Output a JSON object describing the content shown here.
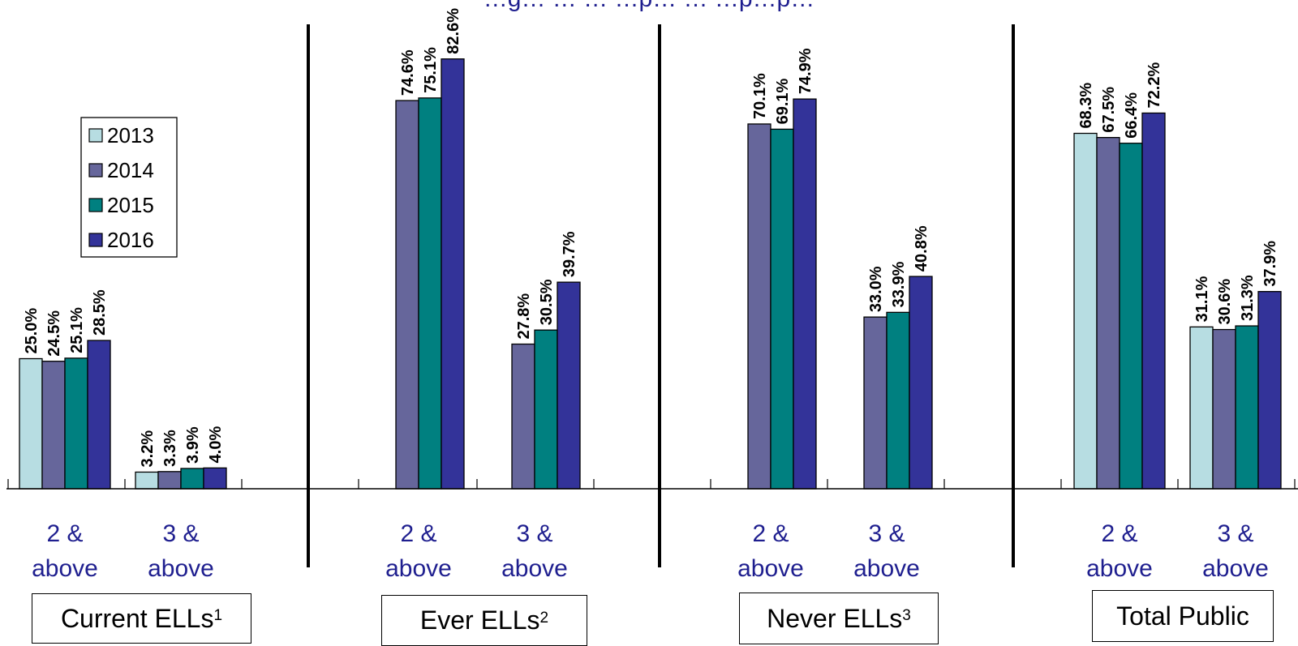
{
  "title_fragment": "…g… … … …p… … …p…p…",
  "chart_data": {
    "type": "bar",
    "categories": [
      "2 & above",
      "3 & above"
    ],
    "years": [
      "2013",
      "2014",
      "2015",
      "2016"
    ],
    "colors": [
      "#b7dde2",
      "#66669b",
      "#008080",
      "#333399"
    ],
    "ylim": [
      0,
      90
    ],
    "groups": [
      {
        "label": "Current ELLs",
        "footnote": "1",
        "values": [
          [
            25.0,
            24.5,
            25.1,
            28.5
          ],
          [
            3.2,
            3.3,
            3.9,
            4.0
          ]
        ],
        "labels": [
          [
            "25.0%",
            "24.5%",
            "25.1%",
            "28.5%"
          ],
          [
            "3.2%",
            "3.3%",
            "3.9%",
            "4.0%"
          ]
        ]
      },
      {
        "label": "Ever ELLs",
        "footnote": "2",
        "values": [
          [
            null,
            74.6,
            75.1,
            82.6
          ],
          [
            null,
            27.8,
            30.5,
            39.7
          ]
        ],
        "labels": [
          [
            "",
            "74.6%",
            "75.1%",
            "82.6%"
          ],
          [
            "",
            "27.8%",
            "30.5%",
            "39.7%"
          ]
        ]
      },
      {
        "label": "Never ELLs",
        "footnote": "3",
        "values": [
          [
            null,
            70.1,
            69.1,
            74.9
          ],
          [
            null,
            33.0,
            33.9,
            40.8
          ]
        ],
        "labels": [
          [
            "",
            "70.1%",
            "69.1%",
            "74.9%"
          ],
          [
            "",
            "33.0%",
            "33.9%",
            "40.8%"
          ]
        ]
      },
      {
        "label": "Total Public",
        "footnote": "",
        "values": [
          [
            68.3,
            67.5,
            66.4,
            72.2
          ],
          [
            31.1,
            30.6,
            31.3,
            37.9
          ]
        ],
        "labels": [
          [
            "68.3%",
            "67.5%",
            "66.4%",
            "72.2%"
          ],
          [
            "31.1%",
            "30.6%",
            "31.3%",
            "37.9%"
          ]
        ]
      }
    ],
    "legend": {
      "entries": [
        "2013",
        "2014",
        "2015",
        "2016"
      ],
      "placement": "left"
    },
    "grid": false
  }
}
